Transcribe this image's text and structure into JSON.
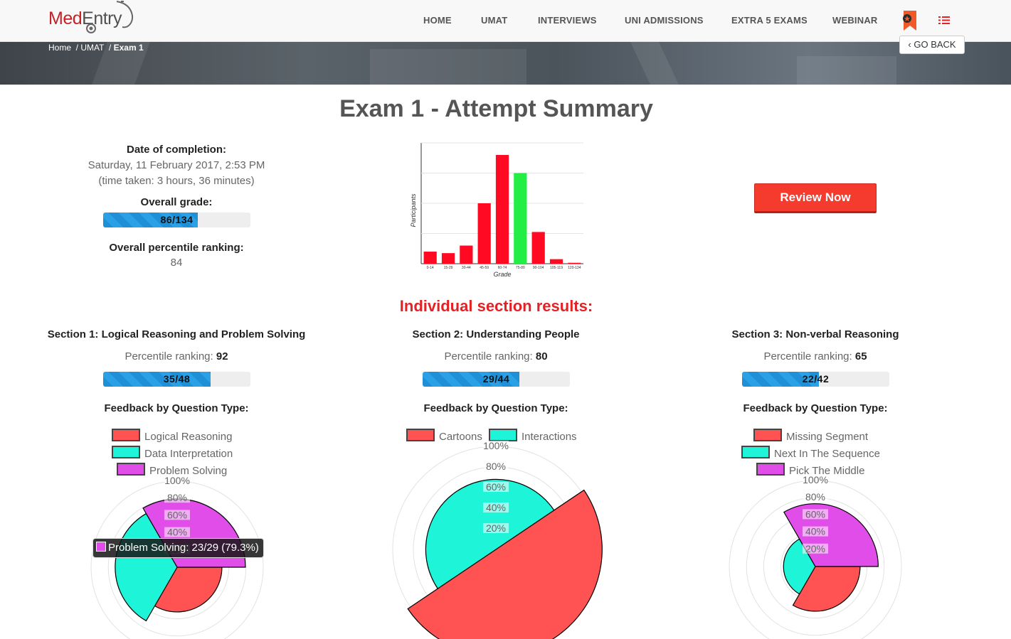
{
  "brand": {
    "part1": "Med",
    "part2": "Entry"
  },
  "nav": [
    "HOME",
    "UMAT",
    "INTERVIEWS",
    "UNI ADMISSIONS",
    "EXTRA 5 EXAMS",
    "WEBINAR"
  ],
  "breadcrumb": {
    "home": "Home",
    "umat": "UMAT",
    "current": "Exam 1"
  },
  "go_back": "GO BACK",
  "title": "Exam 1 - Attempt Summary",
  "summary": {
    "date_label": "Date of completion:",
    "date_value": "Saturday, 11 February 2017, 2:53 PM",
    "time_taken": "(time taken: 3 hours, 36 minutes)",
    "grade_label": "Overall grade:",
    "grade_value": "86/134",
    "grade_fraction": 0.642,
    "percentile_label": "Overall percentile ranking:",
    "percentile_value": "84"
  },
  "review_button": "Review Now",
  "sections_heading": "Individual section results:",
  "sections": [
    {
      "title": "Section 1: Logical Reasoning and Problem Solving",
      "percentile_label": "Percentile ranking:",
      "percentile": "92",
      "score": "35/48",
      "fraction": 0.729,
      "feedback_label": "Feedback by Question Type:"
    },
    {
      "title": "Section 2: Understanding People",
      "percentile_label": "Percentile ranking:",
      "percentile": "80",
      "score": "29/44",
      "fraction": 0.659,
      "feedback_label": "Feedback by Question Type:"
    },
    {
      "title": "Section 3: Non-verbal Reasoning",
      "percentile_label": "Percentile ranking:",
      "percentile": "65",
      "score": "22/42",
      "fraction": 0.524,
      "feedback_label": "Feedback by Question Type:"
    }
  ],
  "legends": {
    "s1": [
      "Logical Reasoning",
      "Data Interpretation",
      "Problem Solving"
    ],
    "s2": [
      "Cartoons",
      "Interactions"
    ],
    "s3": [
      "Missing Segment",
      "Next In The Sequence",
      "Pick The Middle"
    ]
  },
  "tooltip": "Problem Solving: 23/29 (79.3%)",
  "colors": {
    "red": "#ff5252",
    "cyan": "#1ef5d8",
    "magenta": "#e14de8",
    "green": "#22ee44",
    "blue_bar": "#1f8fd8",
    "accent": "#e32226"
  },
  "chart_data": [
    {
      "type": "bar",
      "ylabel": "Participants",
      "xlabel": "Grade",
      "categories": [
        "0-14",
        "15-29",
        "30-44",
        "45-59",
        "60-74",
        "75-89",
        "90-104",
        "105-119",
        "120-134"
      ],
      "values": [
        4,
        3.5,
        6,
        20,
        36,
        30,
        10.5,
        1.5,
        0.3
      ],
      "highlight_index": 5,
      "ylim": [
        0,
        40
      ],
      "grid": true
    },
    {
      "type": "polar",
      "rticks": [
        "20%",
        "40%",
        "60%",
        "80%",
        "100%"
      ],
      "series": [
        {
          "name": "Logical Reasoning",
          "value": 52
        },
        {
          "name": "Data Interpretation",
          "value": 72
        },
        {
          "name": "Problem Solving",
          "value": 79.3
        }
      ]
    },
    {
      "type": "polar",
      "rticks": [
        "20%",
        "40%",
        "60%",
        "80%",
        "100%"
      ],
      "series": [
        {
          "name": "Cartoons",
          "value": 103
        },
        {
          "name": "Interactions",
          "value": 68
        }
      ]
    },
    {
      "type": "polar",
      "rticks": [
        "20%",
        "40%",
        "60%",
        "80%",
        "100%"
      ],
      "series": [
        {
          "name": "Missing Segment",
          "value": 52
        },
        {
          "name": "Next In The Sequence",
          "value": 37
        },
        {
          "name": "Pick The Middle",
          "value": 73
        }
      ]
    }
  ]
}
